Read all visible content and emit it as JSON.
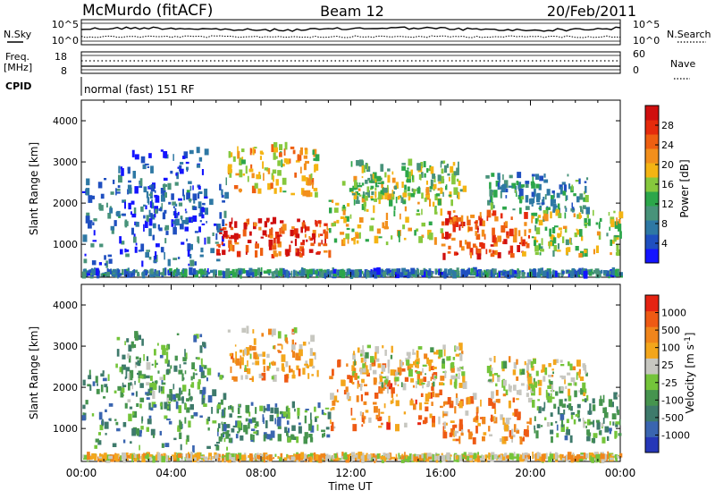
{
  "header": {
    "station": "McMurdo (fitACF)",
    "beam": "Beam 12",
    "date": "20/Feb/2011"
  },
  "nsky_panel": {
    "left_label": "N.Sky",
    "right_label": "N.Search",
    "left_ticks": [
      "10^5",
      "10^0"
    ],
    "right_ticks": [
      "10^5",
      "10^0"
    ]
  },
  "freq_panel": {
    "left_label_1": "Freq.",
    "left_label_2": "[MHz]",
    "right_label": "Nave",
    "left_ticks": [
      "18",
      "8"
    ],
    "right_ticks": [
      "60",
      "0"
    ]
  },
  "cpid": {
    "label": "CPID",
    "text": "normal (fast) 151 RF"
  },
  "x_axis": {
    "ticks": [
      "00:00",
      "04:00",
      "08:00",
      "12:00",
      "16:00",
      "20:00",
      "00:00"
    ],
    "label": "Time UT"
  },
  "colors": {
    "power": [
      "#1414ff",
      "#1f4fc0",
      "#2e78a4",
      "#48937a",
      "#2ca64a",
      "#86c83d",
      "#f4b413",
      "#f28f1c",
      "#ee5f11",
      "#e52b0c",
      "#cf0f0f"
    ],
    "velocity": [
      "#2637b8",
      "#3a65b0",
      "#3e7a6b",
      "#46944e",
      "#74c43a",
      "#c7c7c0",
      "#f3a61c",
      "#f0851b",
      "#ee5a14",
      "#e52312"
    ]
  },
  "chart_data": [
    {
      "type": "heatmap",
      "quantity": "Power",
      "ylabel": "Slant Range [km]",
      "yticks": [
        1000,
        2000,
        3000,
        4000
      ],
      "ylim": [
        200,
        4500
      ],
      "xlim": [
        "00:00",
        "24:00"
      ],
      "colorbar": {
        "label": "Power [dB]",
        "ticks": [
          "28",
          "24",
          "20",
          "16",
          "12",
          "8",
          "4"
        ],
        "range": [
          0,
          30
        ]
      },
      "echo_bands": [
        {
          "t_start": 0.0,
          "t_end": 6.5,
          "range_low": 500,
          "range_high": 2600,
          "level": 0.2
        },
        {
          "t_start": 1.5,
          "t_end": 5.5,
          "range_low": 1500,
          "range_high": 3300,
          "level": 0.15
        },
        {
          "t_start": 6.0,
          "t_end": 11.0,
          "range_low": 700,
          "range_high": 1600,
          "level": 0.85
        },
        {
          "t_start": 6.5,
          "t_end": 10.5,
          "range_low": 2200,
          "range_high": 3400,
          "level": 0.6
        },
        {
          "t_start": 11.0,
          "t_end": 16.0,
          "range_low": 1000,
          "range_high": 2600,
          "level": 0.55
        },
        {
          "t_start": 12.0,
          "t_end": 17.0,
          "range_low": 2000,
          "range_high": 3000,
          "level": 0.45
        },
        {
          "t_start": 16.0,
          "t_end": 20.0,
          "range_low": 700,
          "range_high": 1800,
          "level": 0.8
        },
        {
          "t_start": 18.0,
          "t_end": 22.5,
          "range_low": 1800,
          "range_high": 2700,
          "level": 0.3
        },
        {
          "t_start": 20.0,
          "t_end": 24.0,
          "range_low": 700,
          "range_high": 1800,
          "level": 0.5
        },
        {
          "t_start": 0.0,
          "t_end": 24.0,
          "range_low": 250,
          "range_high": 350,
          "level": 0.25
        }
      ]
    },
    {
      "type": "heatmap",
      "quantity": "Velocity",
      "ylabel": "Slant Range [km]",
      "yticks": [
        1000,
        2000,
        3000,
        4000
      ],
      "ylim": [
        200,
        4500
      ],
      "xlim": [
        "00:00",
        "24:00"
      ],
      "colorbar": {
        "label": "Velocity [m s^-1]",
        "ticks": [
          "1000",
          "500",
          "100",
          "25",
          "-25",
          "-100",
          "-500",
          "-1000"
        ],
        "range": [
          -1000,
          1000
        ]
      },
      "echo_bands": [
        {
          "t_start": 0.0,
          "t_end": 6.5,
          "range_low": 500,
          "range_high": 2600,
          "level": 0.3
        },
        {
          "t_start": 1.5,
          "t_end": 5.5,
          "range_low": 1500,
          "range_high": 3300,
          "level": 0.35
        },
        {
          "t_start": 6.0,
          "t_end": 11.0,
          "range_low": 700,
          "range_high": 1600,
          "level": 0.3
        },
        {
          "t_start": 6.5,
          "t_end": 10.5,
          "range_low": 2200,
          "range_high": 3400,
          "level": 0.65
        },
        {
          "t_start": 11.0,
          "t_end": 16.0,
          "range_low": 1000,
          "range_high": 2600,
          "level": 0.75
        },
        {
          "t_start": 12.0,
          "t_end": 17.0,
          "range_low": 2000,
          "range_high": 3000,
          "level": 0.55
        },
        {
          "t_start": 16.0,
          "t_end": 20.0,
          "range_low": 700,
          "range_high": 1800,
          "level": 0.72
        },
        {
          "t_start": 18.0,
          "t_end": 22.5,
          "range_low": 1800,
          "range_high": 2700,
          "level": 0.55
        },
        {
          "t_start": 20.0,
          "t_end": 24.0,
          "range_low": 700,
          "range_high": 1800,
          "level": 0.35
        },
        {
          "t_start": 0.0,
          "t_end": 24.0,
          "range_low": 250,
          "range_high": 350,
          "level": 0.6
        }
      ]
    }
  ]
}
